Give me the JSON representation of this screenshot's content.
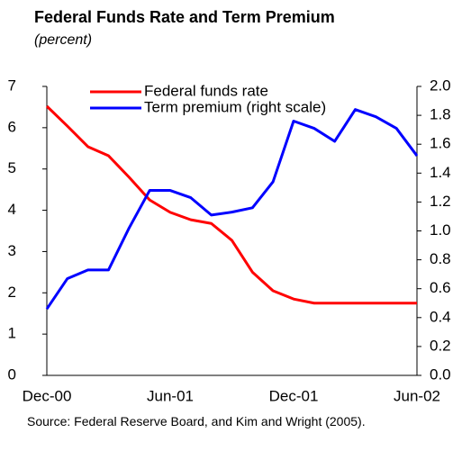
{
  "chart_data": {
    "type": "line",
    "title": "Federal Funds Rate and Term Premium",
    "subtitle": "(percent)",
    "source": "Source: Federal Reserve Board, and Kim and Wright (2005).",
    "categories": [
      "Dec-00",
      null,
      null,
      null,
      null,
      null,
      "Jun-01",
      null,
      null,
      null,
      null,
      null,
      "Dec-01",
      null,
      null,
      null,
      null,
      null,
      "Jun-02"
    ],
    "series": [
      {
        "name": "Federal funds rate",
        "color": "#ff0000",
        "values": [
          6.52,
          6.04,
          5.54,
          5.32,
          4.8,
          4.25,
          3.95,
          3.77,
          3.68,
          3.27,
          2.5,
          2.05,
          1.85,
          1.75,
          1.75,
          1.75,
          1.75,
          1.75,
          1.75
        ]
      },
      {
        "name": "Term premium (right scale)",
        "color": "#0000ff",
        "axis": "y2",
        "values": [
          0.46,
          0.67,
          0.73,
          0.73,
          1.02,
          1.28,
          1.28,
          1.23,
          1.11,
          1.13,
          1.16,
          1.34,
          1.76,
          1.71,
          1.62,
          1.84,
          1.79,
          1.71,
          1.52
        ]
      }
    ],
    "ylim": [
      0,
      7
    ],
    "yticks": [
      0,
      1,
      2,
      3,
      4,
      5,
      6,
      7
    ],
    "y2lim": [
      0,
      2
    ],
    "y2ticks": [
      {
        "value": 0,
        "label": "0.0"
      },
      0.2,
      0.4,
      0.6,
      0.8,
      {
        "value": 1,
        "label": "1.0"
      },
      1.2,
      1.4,
      1.6,
      1.8,
      {
        "value": 2,
        "label": "2.0"
      }
    ]
  }
}
